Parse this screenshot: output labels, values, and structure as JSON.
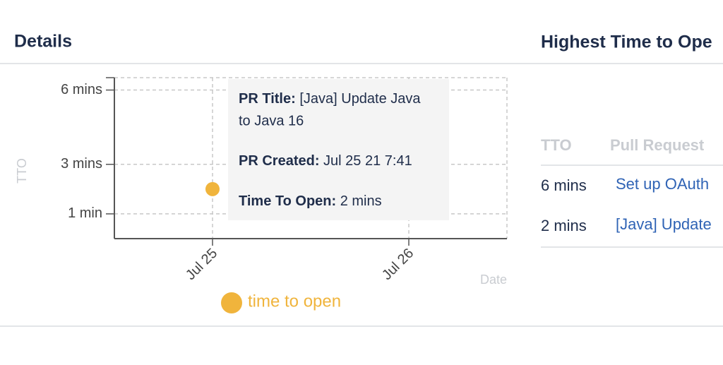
{
  "details": {
    "title": "Details"
  },
  "chart_data": {
    "type": "scatter",
    "x_label": "Date",
    "y_label": "TTO",
    "xlim": [
      24.5,
      26.5
    ],
    "xticks": [
      {
        "value": 25,
        "label": "Jul 25"
      },
      {
        "value": 26,
        "label": "Jul 26"
      }
    ],
    "ylim": [
      0,
      6.5
    ],
    "yticks": [
      {
        "value": 1,
        "label": "1 min"
      },
      {
        "value": 3,
        "label": "3 mins"
      },
      {
        "value": 6,
        "label": "6 mins"
      }
    ],
    "grid": true,
    "series": [
      {
        "name": "time to open",
        "color": "#f0b43c",
        "x": [
          25
        ],
        "values": [
          2
        ]
      }
    ],
    "tooltip": {
      "title_label": "PR Title:",
      "title_value": "[Java] Update Java to Java 16",
      "created_label": "PR Created:",
      "created_value": "Jul 25 21 7:41",
      "tto_label": "Time To Open:",
      "tto_value": "2 mins"
    }
  },
  "highest": {
    "title": "Highest Time to Ope",
    "table": {
      "header": [
        "TTO",
        "Pull Request"
      ],
      "rows": [
        [
          "6 mins",
          "Set up OAuth"
        ],
        [
          "2 mins",
          "[Java] Update"
        ]
      ]
    }
  }
}
